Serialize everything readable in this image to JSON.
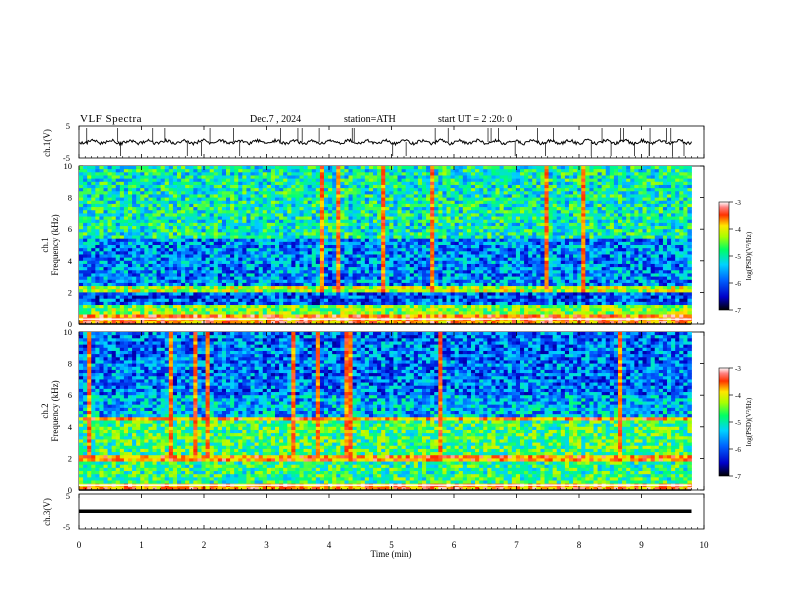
{
  "header": {
    "title": "VLF  Spectra",
    "date": "Dec.7  , 2024",
    "station": "station=ATH",
    "start_ut": "start  UT  =   2  :20: 0"
  },
  "chart_data": [
    {
      "type": "line",
      "panel": "ch1-waveform",
      "ylabel": "ch.1(V)",
      "yticks": [
        "5",
        "-5"
      ],
      "ylim": [
        -5,
        5
      ],
      "xlim": [
        0,
        10
      ],
      "description": "noisy trace near 0 V with sparse sferic spikes",
      "color": "#000000"
    },
    {
      "type": "heatmap",
      "panel": "ch1-spectrogram",
      "ylabel": "ch.1\nFrequency  (kHz)",
      "yticks": [
        "0",
        "2",
        "4",
        "6",
        "8",
        "10"
      ],
      "ylim": [
        0,
        10
      ],
      "xlim": [
        0,
        9.8
      ],
      "colorbar": {
        "label": "log(PSD)(V²/Hz)",
        "ticks": [
          "-3",
          "-4",
          "-5",
          "-6",
          "-7"
        ],
        "range": [
          -7,
          -3
        ],
        "colors": [
          "#000000",
          "#0000ff",
          "#00c8ff",
          "#00ff00",
          "#ffff00",
          "#ff0000",
          "#ffffff"
        ]
      },
      "bands": [
        {
          "from": 0,
          "to": 0.6,
          "level": -3.8
        },
        {
          "from": 0.6,
          "to": 1.3,
          "level": -4.8
        },
        {
          "from": 1.3,
          "to": 2.1,
          "level": -6.2
        },
        {
          "from": 2.1,
          "to": 2.4,
          "level": -4.6
        },
        {
          "from": 2.4,
          "to": 5.5,
          "level": -6.0
        },
        {
          "from": 5.5,
          "to": 10,
          "level": -5.4
        }
      ]
    },
    {
      "type": "heatmap",
      "panel": "ch2-spectrogram",
      "ylabel": "ch.2\nFrequency  (kHz)",
      "yticks": [
        "0",
        "2",
        "4",
        "6",
        "8",
        "10"
      ],
      "ylim": [
        0,
        10
      ],
      "xlim": [
        0,
        9.8
      ],
      "colorbar": {
        "label": "log(PSD)(V²/Hz)",
        "ticks": [
          "-3",
          "-4",
          "-5",
          "-6",
          "-7"
        ],
        "range": [
          -7,
          -3
        ]
      },
      "bands": [
        {
          "from": 0,
          "to": 0.5,
          "level": -3.8
        },
        {
          "from": 0.5,
          "to": 1.8,
          "level": -5.2
        },
        {
          "from": 1.8,
          "to": 2.2,
          "level": -3.9
        },
        {
          "from": 2.2,
          "to": 4.4,
          "level": -5.1
        },
        {
          "from": 4.4,
          "to": 4.7,
          "level": -3.9
        },
        {
          "from": 4.7,
          "to": 6.0,
          "level": -5.8
        },
        {
          "from": 6.0,
          "to": 10,
          "level": -6.1
        }
      ]
    },
    {
      "type": "line",
      "panel": "ch3-waveform",
      "ylabel": "ch.3(V)",
      "yticks": [
        "5",
        "-5"
      ],
      "ylim": [
        -5,
        5
      ],
      "xlim": [
        0,
        10
      ],
      "description": "flat thick trace near -2.5 V",
      "color": "#000000"
    }
  ],
  "xaxis": {
    "label": "Time  (min)",
    "ticks": [
      "0",
      "1",
      "2",
      "3",
      "4",
      "5",
      "6",
      "7",
      "8",
      "9",
      "10"
    ],
    "range": [
      0,
      10
    ]
  }
}
